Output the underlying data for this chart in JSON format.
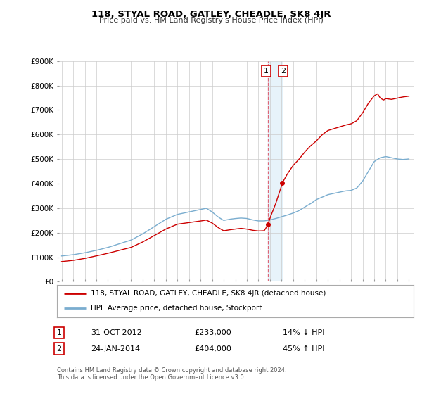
{
  "title": "118, STYAL ROAD, GATLEY, CHEADLE, SK8 4JR",
  "subtitle": "Price paid vs. HM Land Registry's House Price Index (HPI)",
  "legend_label_red": "118, STYAL ROAD, GATLEY, CHEADLE, SK8 4JR (detached house)",
  "legend_label_blue": "HPI: Average price, detached house, Stockport",
  "transaction1_date": "31-OCT-2012",
  "transaction1_price": "£233,000",
  "transaction1_hpi": "14% ↓ HPI",
  "transaction2_date": "24-JAN-2014",
  "transaction2_price": "£404,000",
  "transaction2_hpi": "45% ↑ HPI",
  "footer": "Contains HM Land Registry data © Crown copyright and database right 2024.\nThis data is licensed under the Open Government Licence v3.0.",
  "ylim": [
    0,
    900000
  ],
  "yticks": [
    0,
    100000,
    200000,
    300000,
    400000,
    500000,
    600000,
    700000,
    800000,
    900000
  ],
  "ytick_labels": [
    "£0",
    "£100K",
    "£200K",
    "£300K",
    "£400K",
    "£500K",
    "£600K",
    "£700K",
    "£800K",
    "£900K"
  ],
  "color_red": "#cc0000",
  "color_blue": "#7aadcf",
  "color_fill_blue": "#ddeef8",
  "color_vline": "#dd6677",
  "transaction1_x": 2012.83,
  "transaction1_y": 233000,
  "transaction2_x": 2014.07,
  "transaction2_y": 404000,
  "vline1_x": 2012.83,
  "vline2_x": 2014.07,
  "background_color": "#ffffff",
  "grid_color": "#cccccc",
  "years_start": 1995,
  "years_end": 2025,
  "xlim_left": 1994.6,
  "xlim_right": 2025.4
}
